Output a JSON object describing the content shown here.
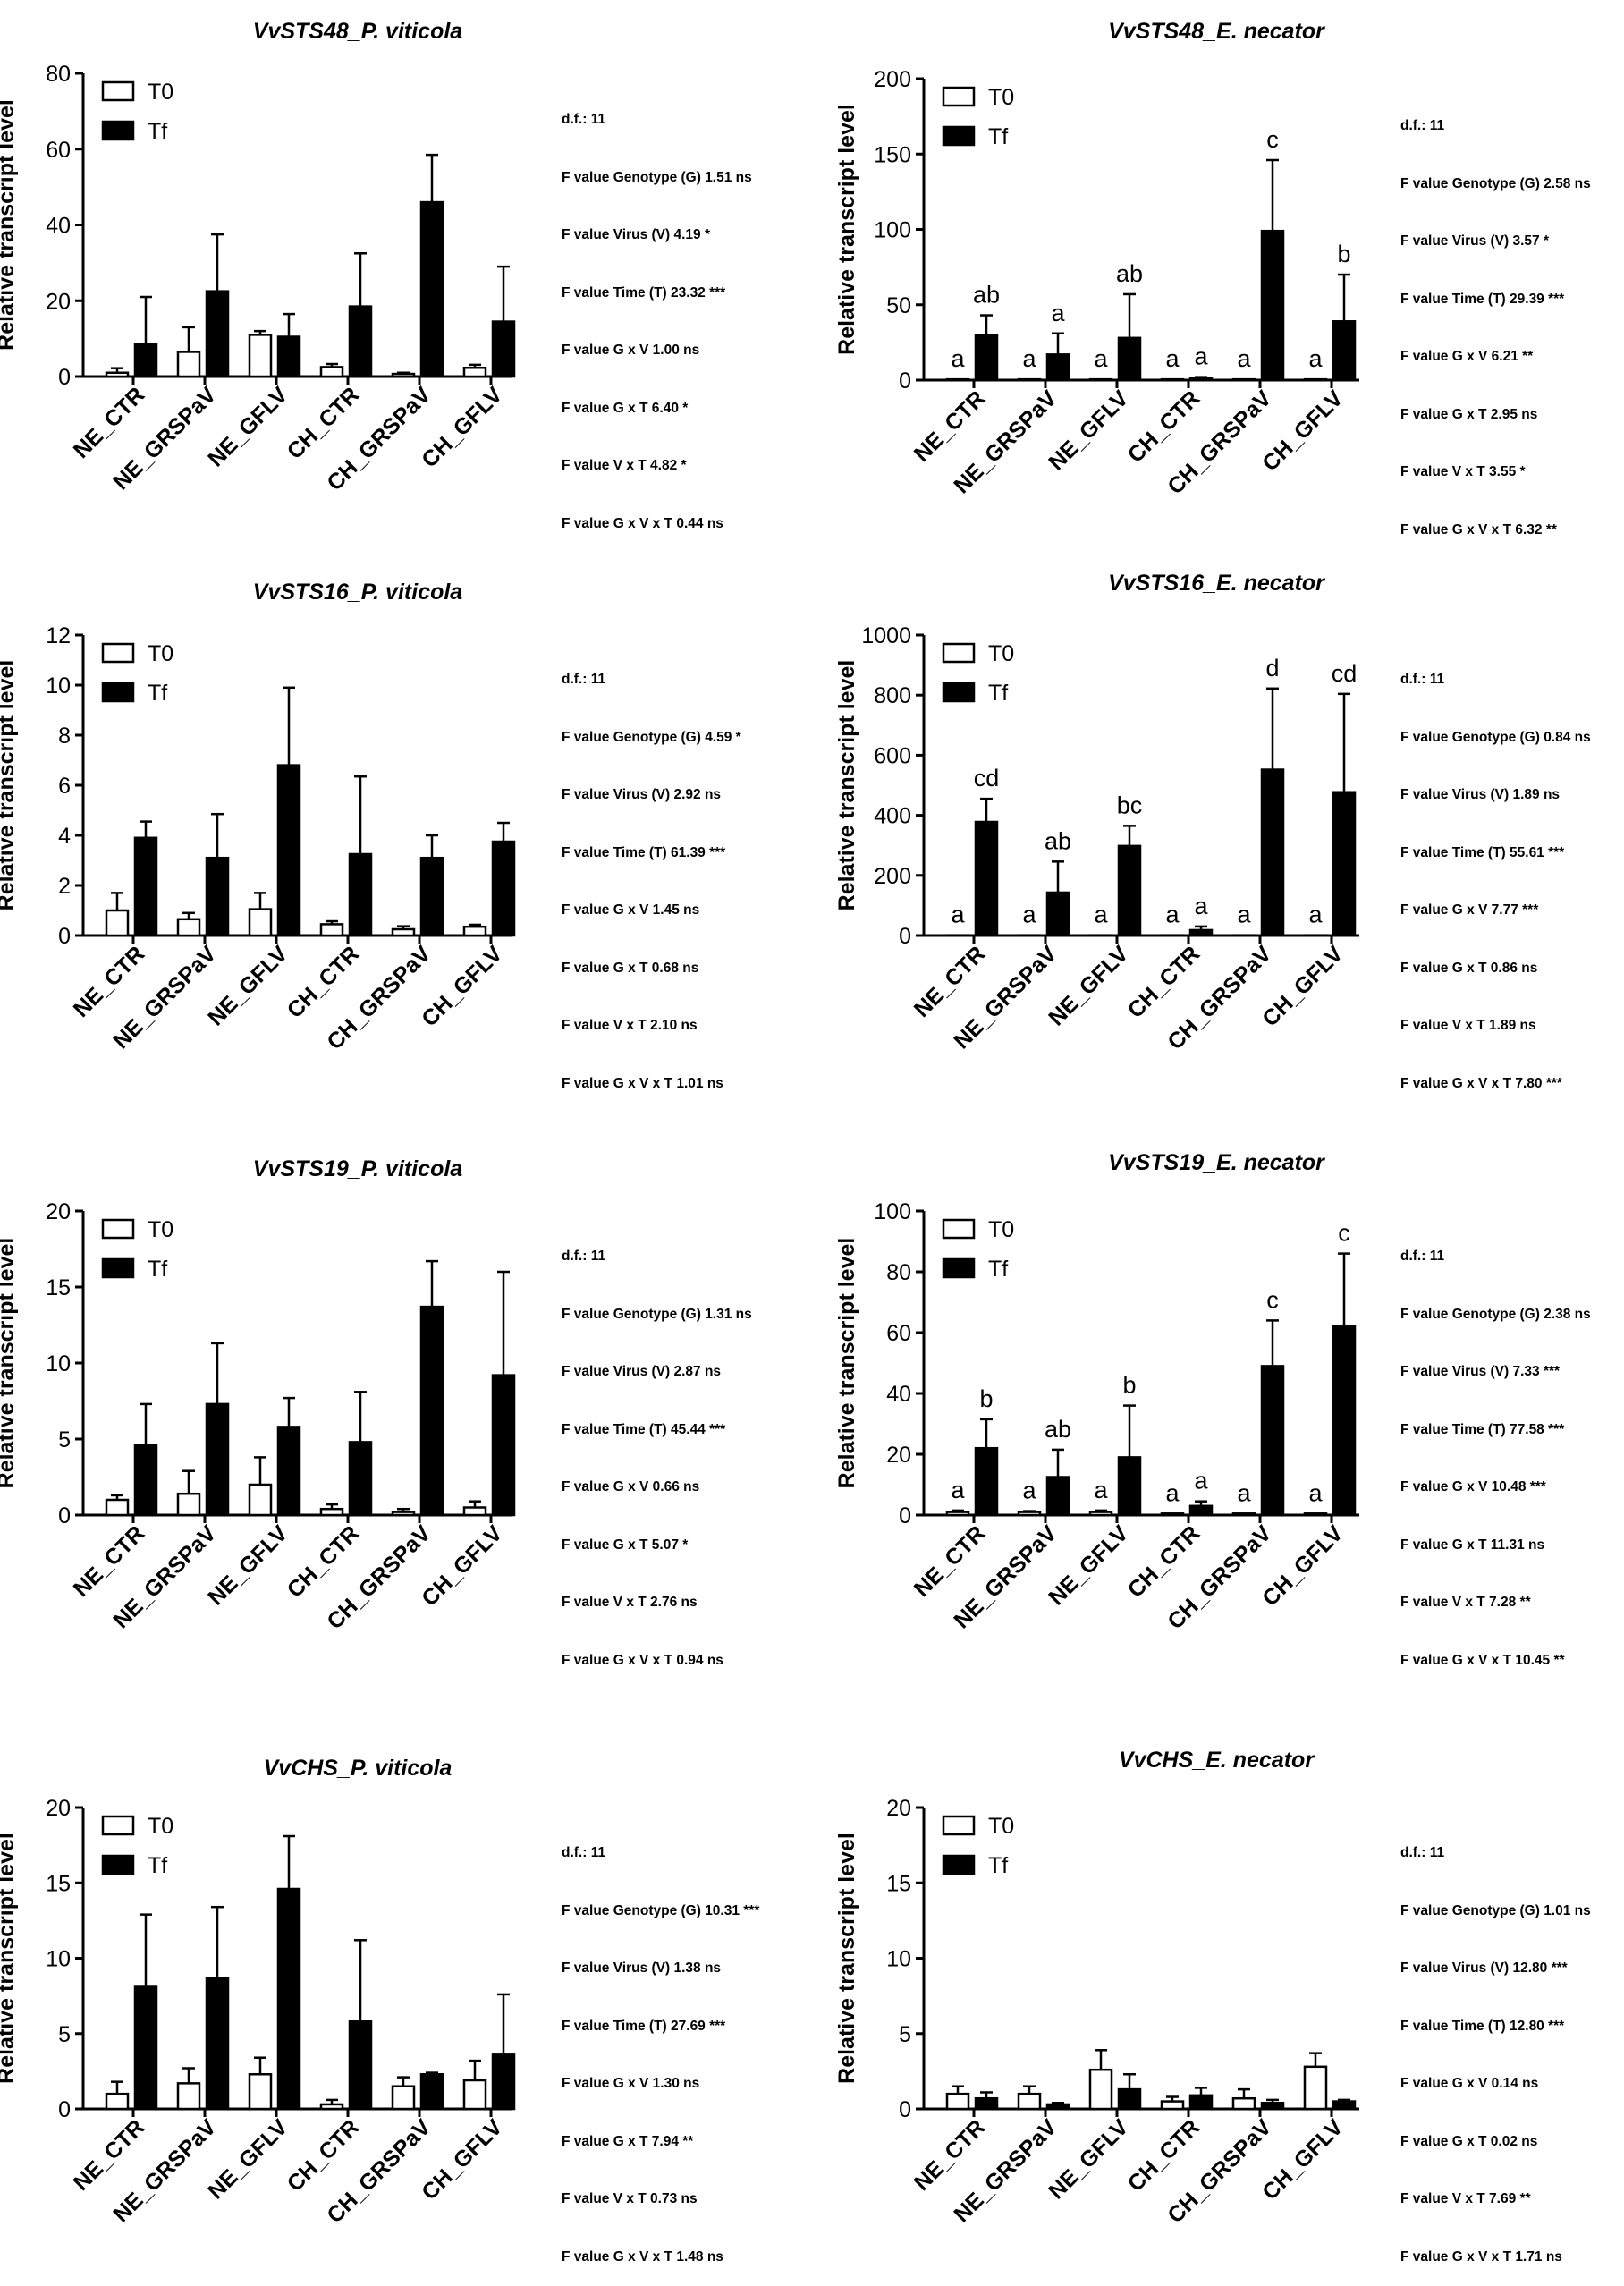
{
  "chart_data": [
    {
      "type": "bar",
      "title": "VvSTS48_P. viticola",
      "title_gene": "VvSTS48_",
      "title_species": "P. viticola",
      "ylabel": "Relative transcript level",
      "ylim": [
        0,
        80
      ],
      "yticks": [
        0,
        20,
        40,
        60,
        80
      ],
      "categories": [
        "NE_CTR",
        "NE_GRSPaV",
        "NE_GFLV",
        "CH_CTR",
        "CH_GRSPaV",
        "CH_GFLV"
      ],
      "series": [
        {
          "name": "T0",
          "fill": "#ffffff",
          "values": [
            1.0,
            6.5,
            11.0,
            2.5,
            0.7,
            2.3
          ],
          "errors": [
            1.2,
            6.5,
            1.0,
            0.8,
            0.3,
            0.8
          ]
        },
        {
          "name": "Tf",
          "fill": "#000000",
          "values": [
            8.5,
            22.5,
            10.5,
            18.5,
            46.0,
            14.5
          ],
          "errors": [
            12.5,
            15.0,
            6.0,
            14.0,
            12.5,
            14.5
          ]
        }
      ],
      "letters": null,
      "stats": [
        "d.f.: 11",
        "F value Genotype (G) 1.51 ns",
        "F value Virus (V) 4.19 *",
        "F value Time (T) 23.32 ***",
        "F value G x V 1.00 ns",
        "F value G x T 6.40 *",
        "F value V x T 4.82 *",
        "F value G x V x T 0.44 ns"
      ]
    },
    {
      "type": "bar",
      "title": "VvSTS48_E. necator",
      "title_gene": "VvSTS48_",
      "title_species": "E. necator",
      "ylabel": "Relative transcript level",
      "ylim": [
        0,
        200
      ],
      "yticks": [
        0,
        50,
        100,
        150,
        200
      ],
      "categories": [
        "NE_CTR",
        "NE_GRSPaV",
        "NE_GFLV",
        "CH_CTR",
        "CH_GRSPaV",
        "CH_GFLV"
      ],
      "series": [
        {
          "name": "T0",
          "fill": "#ffffff",
          "values": [
            0.5,
            0.5,
            0.5,
            0.5,
            0.5,
            0.5
          ],
          "errors": [
            0,
            0,
            0,
            0,
            0,
            0
          ]
        },
        {
          "name": "Tf",
          "fill": "#000000",
          "values": [
            30,
            17,
            28,
            1.5,
            99,
            39
          ],
          "errors": [
            13,
            14,
            29,
            0.5,
            47,
            31
          ]
        }
      ],
      "letters": [
        [
          "a",
          "ab"
        ],
        [
          "a",
          "a"
        ],
        [
          "a",
          "ab"
        ],
        [
          "a",
          "a"
        ],
        [
          "a",
          "c"
        ],
        [
          "a",
          "b"
        ]
      ],
      "stats": [
        "d.f.: 11",
        "F value Genotype (G) 2.58 ns",
        "F value Virus (V) 3.57 *",
        "F value Time (T) 29.39 ***",
        "F value G x V 6.21 **",
        "F value G x T 2.95 ns",
        "F value V x T 3.55 *",
        "F value G x V x T 6.32 **"
      ]
    },
    {
      "type": "bar",
      "title": "VvSTS16_P. viticola",
      "title_gene": "VvSTS16_",
      "title_species": "P. viticola",
      "ylabel": "Relative transcript level",
      "ylim": [
        0,
        12
      ],
      "yticks": [
        0,
        2,
        4,
        6,
        8,
        10,
        12
      ],
      "categories": [
        "NE_CTR",
        "NE_GRSPaV",
        "NE_GFLV",
        "CH_CTR",
        "CH_GRSPaV",
        "CH_GFLV"
      ],
      "series": [
        {
          "name": "T0",
          "fill": "#ffffff",
          "values": [
            1.0,
            0.65,
            1.05,
            0.45,
            0.25,
            0.35
          ],
          "errors": [
            0.7,
            0.25,
            0.65,
            0.12,
            0.12,
            0.08
          ]
        },
        {
          "name": "Tf",
          "fill": "#000000",
          "values": [
            3.9,
            3.1,
            6.8,
            3.25,
            3.1,
            3.75
          ],
          "errors": [
            0.65,
            1.75,
            3.1,
            3.1,
            0.9,
            0.75
          ]
        }
      ],
      "letters": null,
      "stats": [
        "d.f.: 11",
        "F value Genotype (G) 4.59 *",
        "F value Virus (V) 2.92 ns",
        "F value Time (T) 61.39 ***",
        "F value G x V 1.45 ns",
        "F value G x T 0.68 ns",
        "F value V x T 2.10 ns",
        "F value G x V x T 1.01 ns"
      ]
    },
    {
      "type": "bar",
      "title": "VvSTS16_E. necator",
      "title_gene": "VvSTS16_",
      "title_species": "E. necator",
      "ylabel": "Relative transcript level",
      "ylim": [
        0,
        1000
      ],
      "yticks": [
        0,
        200,
        400,
        600,
        800,
        1000
      ],
      "categories": [
        "NE_CTR",
        "NE_GRSPaV",
        "NE_GFLV",
        "CH_CTR",
        "CH_GRSPaV",
        "CH_GFLV"
      ],
      "series": [
        {
          "name": "T0",
          "fill": "#ffffff",
          "values": [
            1,
            1,
            1,
            1,
            1,
            1
          ],
          "errors": [
            0,
            0,
            0,
            0,
            0,
            0
          ]
        },
        {
          "name": "Tf",
          "fill": "#000000",
          "values": [
            378,
            143,
            298,
            18,
            552,
            477
          ],
          "errors": [
            77,
            103,
            67,
            12,
            270,
            327
          ]
        }
      ],
      "letters": [
        [
          "a",
          "cd"
        ],
        [
          "a",
          "ab"
        ],
        [
          "a",
          "bc"
        ],
        [
          "a",
          "a"
        ],
        [
          "a",
          "d"
        ],
        [
          "a",
          "cd"
        ]
      ],
      "stats": [
        "d.f.: 11",
        "F value Genotype (G) 0.84 ns",
        "F value Virus (V) 1.89 ns",
        "F value Time (T) 55.61 ***",
        "F value G x V 7.77 ***",
        "F value G x T 0.86 ns",
        "F value V x T 1.89 ns",
        "F value G x V x T 7.80 ***"
      ]
    },
    {
      "type": "bar",
      "title": "VvSTS19_P. viticola",
      "title_gene": "VvSTS19_",
      "title_species": "P. viticola",
      "ylabel": "Relative transcript level",
      "ylim": [
        0,
        20
      ],
      "yticks": [
        0,
        5,
        10,
        15,
        20
      ],
      "categories": [
        "NE_CTR",
        "NE_GRSPaV",
        "NE_GFLV",
        "CH_CTR",
        "CH_GRSPaV",
        "CH_GFLV"
      ],
      "series": [
        {
          "name": "T0",
          "fill": "#ffffff",
          "values": [
            1.0,
            1.4,
            2.0,
            0.4,
            0.2,
            0.5
          ],
          "errors": [
            0.3,
            1.5,
            1.8,
            0.3,
            0.2,
            0.4
          ]
        },
        {
          "name": "Tf",
          "fill": "#000000",
          "values": [
            4.6,
            7.3,
            5.8,
            4.8,
            13.7,
            9.2
          ],
          "errors": [
            2.7,
            4.0,
            1.9,
            3.3,
            3.0,
            6.8
          ]
        }
      ],
      "letters": null,
      "stats": [
        "d.f.: 11",
        "F value Genotype (G) 1.31 ns",
        "F value Virus (V) 2.87 ns",
        "F value Time (T) 45.44 ***",
        "F value G x V 0.66 ns",
        "F value G x T 5.07 *",
        "F value V x T 2.76 ns",
        "F value G x V x T 0.94 ns"
      ]
    },
    {
      "type": "bar",
      "title": "VvSTS19_E. necator",
      "title_gene": "VvSTS19_",
      "title_species": "E. necator",
      "ylabel": "Relative transcript level",
      "ylim": [
        0,
        100
      ],
      "yticks": [
        0,
        20,
        40,
        60,
        80,
        100
      ],
      "categories": [
        "NE_CTR",
        "NE_GRSPaV",
        "NE_GFLV",
        "CH_CTR",
        "CH_GRSPaV",
        "CH_GFLV"
      ],
      "series": [
        {
          "name": "T0",
          "fill": "#ffffff",
          "values": [
            1,
            1,
            1,
            0.5,
            0.5,
            0.5
          ],
          "errors": [
            0.5,
            0.3,
            0.5,
            0,
            0,
            0
          ]
        },
        {
          "name": "Tf",
          "fill": "#000000",
          "values": [
            22,
            12.5,
            19,
            3,
            49,
            62
          ],
          "errors": [
            9.5,
            9,
            17,
            1.5,
            15,
            24
          ]
        }
      ],
      "letters": [
        [
          "a",
          "b"
        ],
        [
          "a",
          "ab"
        ],
        [
          "a",
          "b"
        ],
        [
          "a",
          "a"
        ],
        [
          "a",
          "c"
        ],
        [
          "a",
          "c"
        ]
      ],
      "stats": [
        "d.f.: 11",
        "F value Genotype (G) 2.38 ns",
        "F value Virus (V) 7.33 ***",
        "F value Time (T) 77.58 ***",
        "F value G x V 10.48 ***",
        "F value G x T 11.31 ns",
        "F value V x T 7.28 **",
        "F value G x V x T 10.45 **"
      ]
    },
    {
      "type": "bar",
      "title": "VvCHS_P. viticola",
      "title_gene": "VvCHS_",
      "title_species": "P. viticola",
      "ylabel": "Relative transcript level",
      "ylim": [
        0,
        20
      ],
      "yticks": [
        0,
        5,
        10,
        15,
        20
      ],
      "categories": [
        "NE_CTR",
        "NE_GRSPaV",
        "NE_GFLV",
        "CH_CTR",
        "CH_GRSPaV",
        "CH_GFLV"
      ],
      "series": [
        {
          "name": "T0",
          "fill": "#ffffff",
          "values": [
            1.0,
            1.7,
            2.3,
            0.3,
            1.5,
            1.9
          ],
          "errors": [
            0.8,
            1.0,
            1.1,
            0.3,
            0.6,
            1.3
          ]
        },
        {
          "name": "Tf",
          "fill": "#000000",
          "values": [
            8.1,
            8.7,
            14.6,
            5.8,
            2.3,
            3.6
          ],
          "errors": [
            4.8,
            4.7,
            3.5,
            5.4,
            0.1,
            4.0
          ]
        }
      ],
      "letters": null,
      "stats": [
        "d.f.: 11",
        "F value Genotype (G) 10.31 ***",
        "F value Virus (V) 1.38 ns",
        "F value Time (T) 27.69 ***",
        "F value G x V 1.30 ns",
        "F value G x T 7.94 **",
        "F value V x T 0.73 ns",
        "F value G x V x T 1.48 ns"
      ]
    },
    {
      "type": "bar",
      "title": "VvCHS_E. necator",
      "title_gene": "VvCHS_",
      "title_species": "E. necator",
      "ylabel": "Relative transcript level",
      "ylim": [
        0,
        20
      ],
      "yticks": [
        0,
        5,
        10,
        15,
        20
      ],
      "categories": [
        "NE_CTR",
        "NE_GRSPaV",
        "NE_GFLV",
        "CH_CTR",
        "CH_GRSPaV",
        "CH_GFLV"
      ],
      "series": [
        {
          "name": "T0",
          "fill": "#ffffff",
          "values": [
            1.0,
            1.0,
            2.6,
            0.5,
            0.7,
            2.8
          ],
          "errors": [
            0.5,
            0.5,
            1.3,
            0.3,
            0.6,
            0.9
          ]
        },
        {
          "name": "Tf",
          "fill": "#000000",
          "values": [
            0.7,
            0.3,
            1.3,
            0.9,
            0.4,
            0.5
          ],
          "errors": [
            0.4,
            0.1,
            1.0,
            0.5,
            0.2,
            0.1
          ]
        }
      ],
      "letters": null,
      "stats": [
        "d.f.: 11",
        "F value Genotype (G) 1.01 ns",
        "F value Virus (V) 12.80 ***",
        "F value Time (T) 12.80 ***",
        "F value G x V 0.14 ns",
        "F value G x T 0.02 ns",
        "F value V x T 7.69 **",
        "F value G x V x T 1.71 ns"
      ]
    }
  ]
}
